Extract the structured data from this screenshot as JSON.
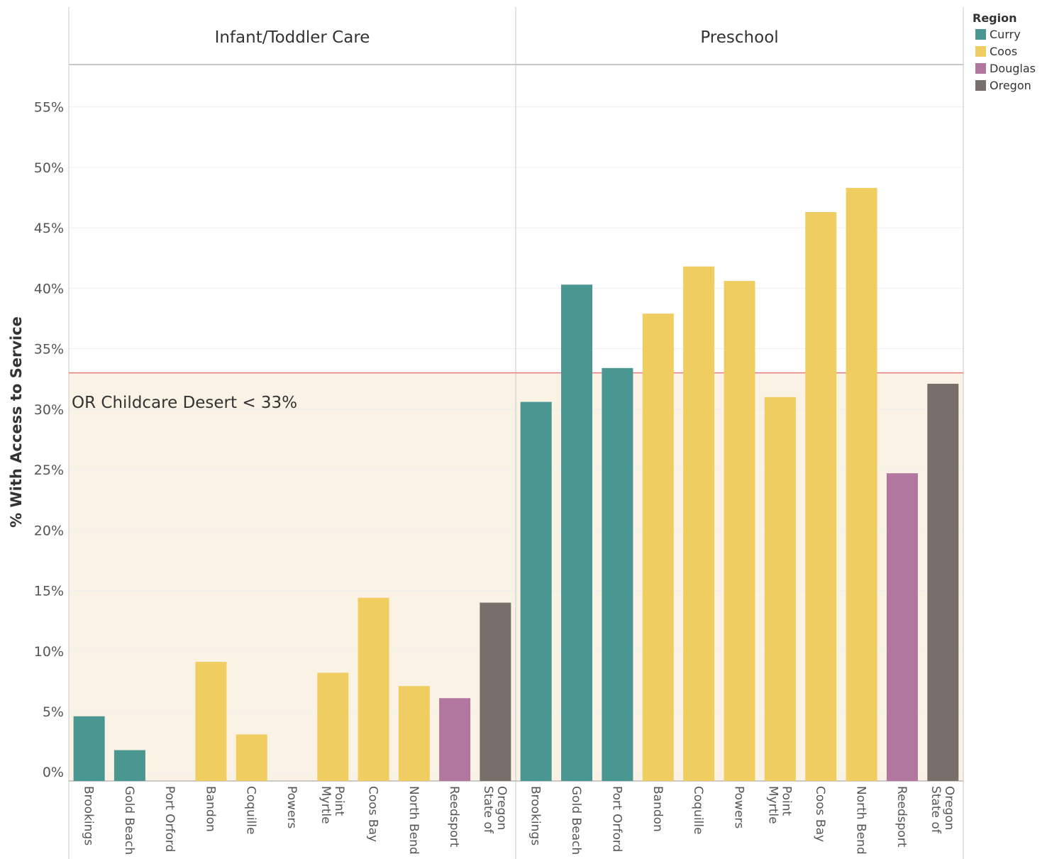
{
  "chart_data": {
    "type": "bar",
    "ylabel": "% With Access to Service",
    "ylim": [
      -0.75,
      58.5
    ],
    "y_ticks": [
      0,
      5,
      10,
      15,
      20,
      25,
      30,
      35,
      40,
      45,
      50,
      55
    ],
    "y_tick_labels": [
      "0%",
      "5%",
      "10%",
      "15%",
      "20%",
      "25%",
      "30%",
      "35%",
      "40%",
      "45%",
      "50%",
      "55%"
    ],
    "threshold": {
      "value": 33,
      "label": "OR Childcare Desert < 33%",
      "color": "#e87b7b",
      "fill": "#faf2e4"
    },
    "legend": {
      "title": "Region",
      "position": "top-right",
      "items": [
        {
          "name": "Curry",
          "color": "#4a9690"
        },
        {
          "name": "Coos",
          "color": "#efcd61"
        },
        {
          "name": "Douglas",
          "color": "#b2779f"
        },
        {
          "name": "Oregon",
          "color": "#786e6a"
        }
      ]
    },
    "panels": [
      {
        "title": "Infant/Toddler Care",
        "bars": [
          {
            "label": [
              "Brookings"
            ],
            "region": "Curry",
            "value": 4.6
          },
          {
            "label": [
              "Gold Beach"
            ],
            "region": "Curry",
            "value": 1.8
          },
          {
            "label": [
              "Port Orford"
            ],
            "region": "Curry",
            "value": 0
          },
          {
            "label": [
              "Bandon"
            ],
            "region": "Coos",
            "value": 9.1
          },
          {
            "label": [
              "Coquille"
            ],
            "region": "Coos",
            "value": 3.1
          },
          {
            "label": [
              "Powers"
            ],
            "region": "Coos",
            "value": 0
          },
          {
            "label": [
              "Myrtle",
              "Point"
            ],
            "region": "Coos",
            "value": 8.2
          },
          {
            "label": [
              "Coos Bay"
            ],
            "region": "Coos",
            "value": 14.4
          },
          {
            "label": [
              "North Bend"
            ],
            "region": "Coos",
            "value": 7.1
          },
          {
            "label": [
              "Reedsport"
            ],
            "region": "Douglas",
            "value": 6.1
          },
          {
            "label": [
              "State of",
              "Oregon"
            ],
            "region": "Oregon",
            "value": 14.0
          }
        ]
      },
      {
        "title": "Preschool",
        "bars": [
          {
            "label": [
              "Brookings"
            ],
            "region": "Curry",
            "value": 30.6
          },
          {
            "label": [
              "Gold Beach"
            ],
            "region": "Curry",
            "value": 40.3
          },
          {
            "label": [
              "Port Orford"
            ],
            "region": "Curry",
            "value": 33.4
          },
          {
            "label": [
              "Bandon"
            ],
            "region": "Coos",
            "value": 37.9
          },
          {
            "label": [
              "Coquille"
            ],
            "region": "Coos",
            "value": 41.8
          },
          {
            "label": [
              "Powers"
            ],
            "region": "Coos",
            "value": 40.6
          },
          {
            "label": [
              "Myrtle",
              "Point"
            ],
            "region": "Coos",
            "value": 31.0
          },
          {
            "label": [
              "Coos Bay"
            ],
            "region": "Coos",
            "value": 46.3
          },
          {
            "label": [
              "North Bend"
            ],
            "region": "Coos",
            "value": 48.3
          },
          {
            "label": [
              "Reedsport"
            ],
            "region": "Douglas",
            "value": 24.7
          },
          {
            "label": [
              "State of",
              "Oregon"
            ],
            "region": "Oregon",
            "value": 32.1
          }
        ]
      }
    ]
  }
}
